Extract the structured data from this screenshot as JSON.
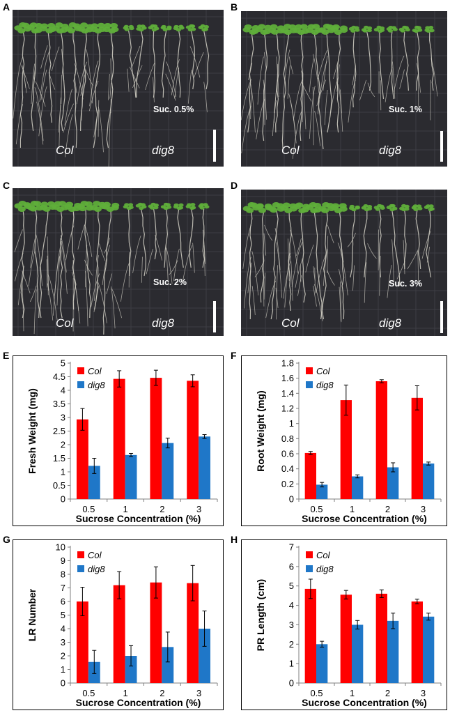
{
  "photo_panels": [
    {
      "letter": "A",
      "genotypes": [
        "Col",
        "dig8"
      ],
      "sucrose_label": "Suc.  0.5%"
    },
    {
      "letter": "B",
      "genotypes": [
        "Col",
        "dig8"
      ],
      "sucrose_label": "Suc.  1%"
    },
    {
      "letter": "C",
      "genotypes": [
        "Col",
        "dig8"
      ],
      "sucrose_label": "Suc.  2%"
    },
    {
      "letter": "D",
      "genotypes": [
        "Col",
        "dig8"
      ],
      "sucrose_label": "Suc.  3%"
    }
  ],
  "colors": {
    "col": "#ff0000",
    "dig8": "#1f77c8",
    "photo_bg": "#2b2b30",
    "root": "#d6d3c8",
    "leaf": "#5fae3a"
  },
  "chart_data": [
    {
      "letter": "E",
      "type": "bar",
      "categories": [
        "0.5",
        "1",
        "2",
        "3"
      ],
      "series": [
        {
          "name": "Col",
          "values": [
            2.93,
            4.42,
            4.46,
            4.35
          ],
          "errors": [
            0.4,
            0.3,
            0.28,
            0.22
          ]
        },
        {
          "name": "dig8",
          "values": [
            1.22,
            1.62,
            2.06,
            2.3
          ],
          "errors": [
            0.28,
            0.06,
            0.18,
            0.07
          ]
        }
      ],
      "xlabel": "Sucrose Concentration (%)",
      "ylabel": "Fresh Weight (mg)",
      "ylim": [
        0,
        5
      ],
      "yticks": [
        "0",
        "0.5",
        "1",
        "1.5",
        "2",
        "2.5",
        "3",
        "3.5",
        "4",
        "4.5",
        "5"
      ],
      "legend": "top-left",
      "grid": false
    },
    {
      "letter": "F",
      "type": "bar",
      "categories": [
        "0.5",
        "1",
        "2",
        "3"
      ],
      "series": [
        {
          "name": "Col",
          "values": [
            0.61,
            1.31,
            1.56,
            1.34
          ],
          "errors": [
            0.02,
            0.2,
            0.02,
            0.16
          ]
        },
        {
          "name": "dig8",
          "values": [
            0.19,
            0.3,
            0.42,
            0.47
          ],
          "errors": [
            0.03,
            0.02,
            0.06,
            0.02
          ]
        }
      ],
      "xlabel": "Sucrose Concentration (%)",
      "ylabel": "Root Weight (mg)",
      "ylim": [
        0,
        1.8
      ],
      "yticks": [
        "0",
        "0.2",
        "0.4",
        "0.6",
        "0.8",
        "1",
        "1.2",
        "1.4",
        "1.6",
        "1.8"
      ],
      "legend": "top-left",
      "grid": false
    },
    {
      "letter": "G",
      "type": "bar",
      "categories": [
        "0.5",
        "1",
        "2",
        "3"
      ],
      "series": [
        {
          "name": "Col",
          "values": [
            6.0,
            7.2,
            7.4,
            7.35
          ],
          "errors": [
            1.05,
            1.0,
            1.15,
            1.3
          ]
        },
        {
          "name": "dig8",
          "values": [
            1.55,
            2.0,
            2.65,
            4.0
          ],
          "errors": [
            0.85,
            0.75,
            1.1,
            1.3
          ]
        }
      ],
      "xlabel": "Sucrose Concentration (%)",
      "ylabel": "LR Number",
      "ylim": [
        0,
        10
      ],
      "yticks": [
        "0",
        "1",
        "2",
        "3",
        "4",
        "5",
        "6",
        "7",
        "8",
        "9",
        "10"
      ],
      "legend": "top-left",
      "grid": false
    },
    {
      "letter": "H",
      "type": "bar",
      "categories": [
        "0.5",
        "1",
        "2",
        "3"
      ],
      "series": [
        {
          "name": "Col",
          "values": [
            4.85,
            4.55,
            4.6,
            4.2
          ],
          "errors": [
            0.5,
            0.22,
            0.2,
            0.12
          ]
        },
        {
          "name": "dig8",
          "values": [
            2.0,
            3.0,
            3.2,
            3.42
          ],
          "errors": [
            0.15,
            0.22,
            0.4,
            0.18
          ]
        }
      ],
      "xlabel": "Sucrose Concentration (%)",
      "ylabel": "PR Length (cm)",
      "ylim": [
        0,
        7
      ],
      "yticks": [
        "0",
        "1",
        "2",
        "3",
        "4",
        "5",
        "6",
        "7"
      ],
      "legend": "top-left",
      "grid": false
    }
  ]
}
